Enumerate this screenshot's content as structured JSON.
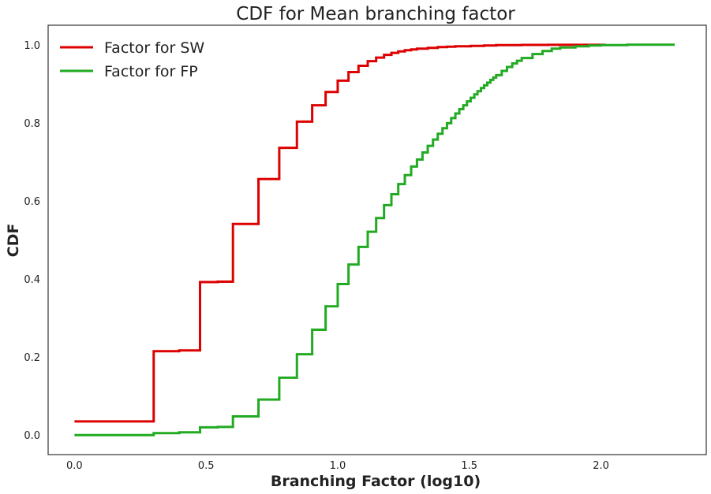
{
  "chart_data": {
    "type": "line",
    "title": "CDF for Mean branching factor",
    "xlabel": "Branching Factor (log10)",
    "ylabel": "CDF",
    "xlim": [
      -0.1,
      2.4
    ],
    "ylim": [
      -0.05,
      1.05
    ],
    "xticks": [
      "0.0",
      "0.5",
      "1.0",
      "1.5",
      "2.0"
    ],
    "yticks": [
      "0.0",
      "0.2",
      "0.4",
      "0.6",
      "0.8",
      "1.0"
    ],
    "grid": false,
    "legend_position": "top-left",
    "series": [
      {
        "name": "Factor for SW",
        "color": "#dd0000",
        "step": true,
        "x": [
          0.0,
          0.301,
          0.398,
          0.477,
          0.544,
          0.602,
          0.699,
          0.778,
          0.845,
          0.903,
          0.954,
          1.0,
          1.041,
          1.079,
          1.114,
          1.146,
          1.176,
          1.204,
          1.23,
          1.255,
          1.279,
          1.301,
          1.342,
          1.38,
          1.415,
          1.447,
          1.505,
          1.556,
          1.602,
          1.699,
          1.799,
          1.903,
          2.017
        ],
        "y": [
          0.035,
          0.215,
          0.217,
          0.392,
          0.393,
          0.541,
          0.656,
          0.736,
          0.803,
          0.845,
          0.879,
          0.908,
          0.93,
          0.946,
          0.958,
          0.967,
          0.974,
          0.979,
          0.983,
          0.986,
          0.988,
          0.99,
          0.992,
          0.994,
          0.995,
          0.996,
          0.997,
          0.998,
          0.999,
          0.9995,
          0.9998,
          0.9999,
          1.0
        ]
      },
      {
        "name": "Factor for FP",
        "color": "#22aa22",
        "step": true,
        "x": [
          0.0,
          0.301,
          0.398,
          0.477,
          0.544,
          0.602,
          0.699,
          0.778,
          0.845,
          0.903,
          0.954,
          1.0,
          1.041,
          1.079,
          1.114,
          1.146,
          1.176,
          1.204,
          1.23,
          1.255,
          1.279,
          1.301,
          1.322,
          1.342,
          1.362,
          1.38,
          1.398,
          1.415,
          1.431,
          1.447,
          1.462,
          1.477,
          1.491,
          1.505,
          1.519,
          1.531,
          1.544,
          1.556,
          1.568,
          1.58,
          1.591,
          1.602,
          1.623,
          1.643,
          1.663,
          1.681,
          1.699,
          1.74,
          1.778,
          1.813,
          1.845,
          1.903,
          1.954,
          2.0,
          2.1,
          2.2,
          2.28
        ],
        "y": [
          0.0,
          0.005,
          0.007,
          0.02,
          0.021,
          0.048,
          0.091,
          0.147,
          0.207,
          0.27,
          0.33,
          0.387,
          0.437,
          0.482,
          0.521,
          0.556,
          0.589,
          0.617,
          0.643,
          0.666,
          0.688,
          0.706,
          0.724,
          0.741,
          0.757,
          0.772,
          0.786,
          0.799,
          0.812,
          0.824,
          0.835,
          0.845,
          0.855,
          0.864,
          0.873,
          0.881,
          0.889,
          0.896,
          0.903,
          0.91,
          0.916,
          0.922,
          0.933,
          0.943,
          0.952,
          0.959,
          0.966,
          0.976,
          0.984,
          0.99,
          0.993,
          0.996,
          0.998,
          0.999,
          1.0,
          1.0,
          1.0
        ]
      }
    ]
  }
}
